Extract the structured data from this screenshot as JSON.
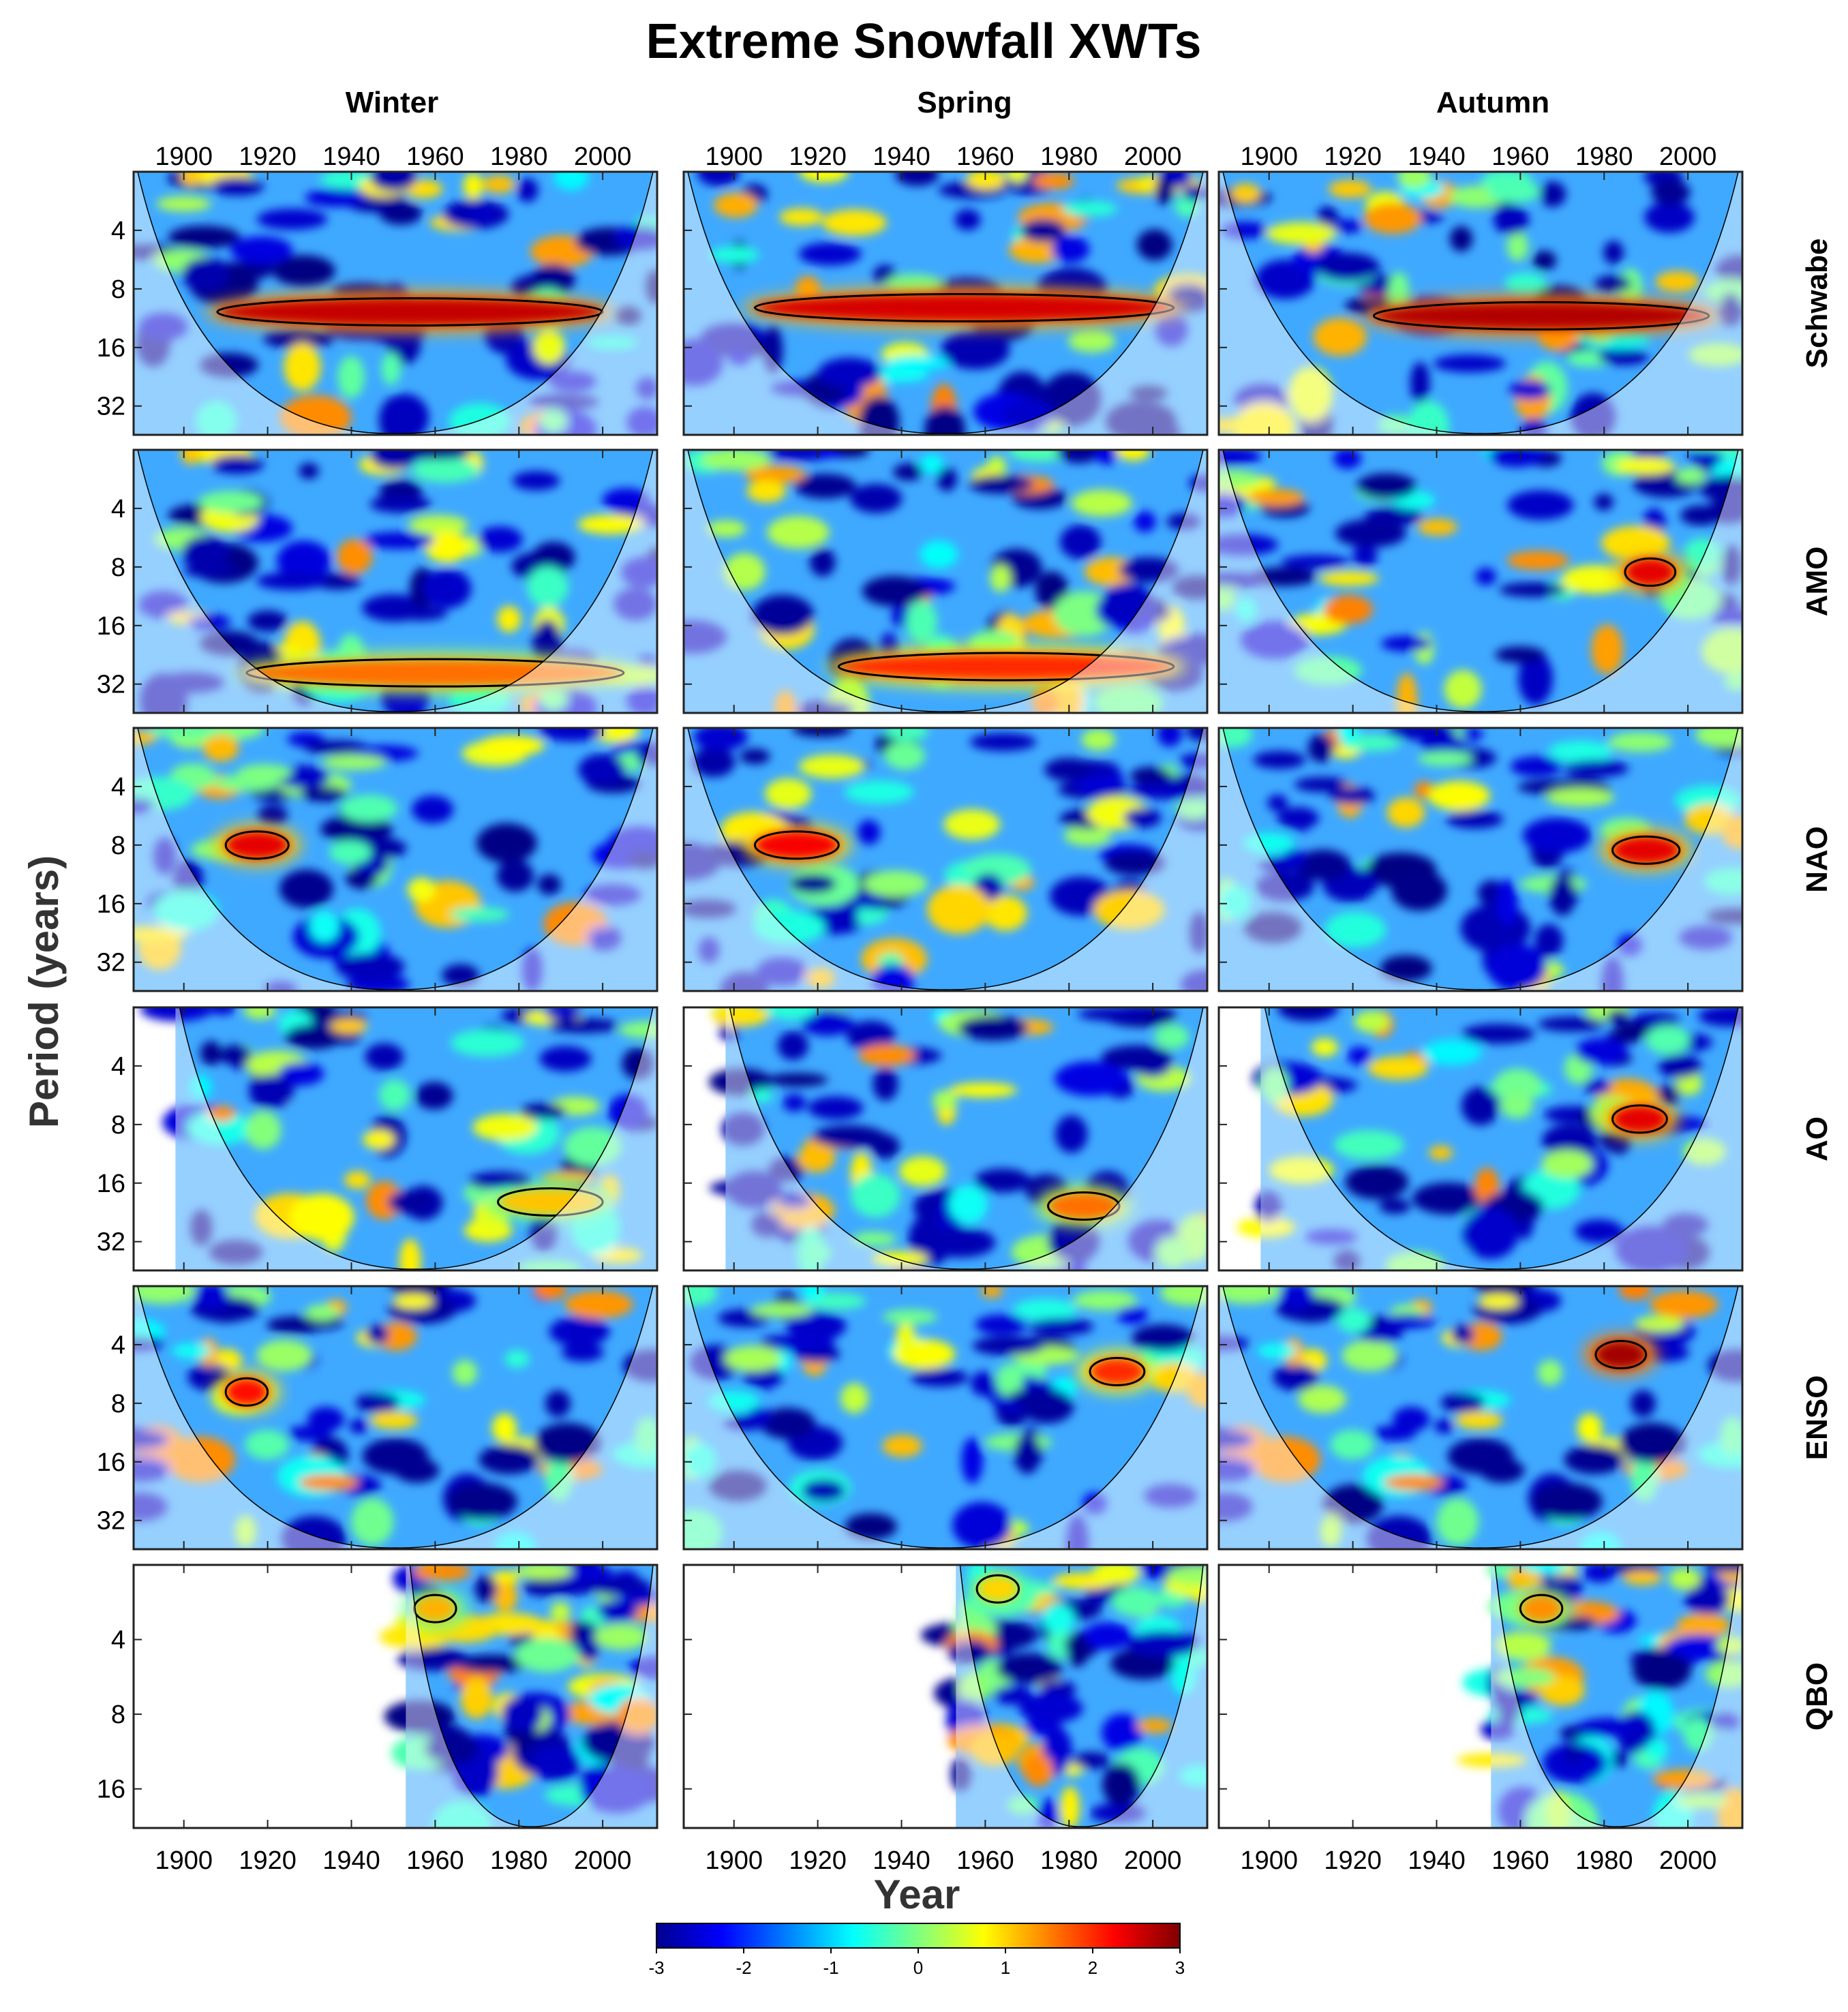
{
  "chart_data": {
    "type": "heatmap",
    "title": "Extreme Snowfall XWTs",
    "xlabel": "Year",
    "ylabel": "Period (years)",
    "columns": [
      "Winter",
      "Spring",
      "Autumn"
    ],
    "rows": [
      {
        "name": "Schwabe",
        "yticks": [
          "4",
          "8",
          "16",
          "32"
        ],
        "period_range": [
          2,
          45
        ],
        "start_year": 1888
      },
      {
        "name": "AMO",
        "yticks": [
          "4",
          "8",
          "16",
          "32"
        ],
        "period_range": [
          2,
          45
        ],
        "start_year": 1888
      },
      {
        "name": "NAO",
        "yticks": [
          "4",
          "8",
          "16",
          "32"
        ],
        "period_range": [
          2,
          45
        ],
        "start_year": 1888
      },
      {
        "name": "AO",
        "yticks": [
          "4",
          "8",
          "16",
          "32"
        ],
        "period_range": [
          2,
          45
        ],
        "start_year": 1898
      },
      {
        "name": "ENSO",
        "yticks": [
          "4",
          "8",
          "16",
          "32"
        ],
        "period_range": [
          2,
          45
        ],
        "start_year": 1888
      },
      {
        "name": "QBO",
        "yticks": [
          "4",
          "8",
          "16"
        ],
        "period_range": [
          2,
          23
        ],
        "start_year": 1953
      }
    ],
    "xticks": [
      "1900",
      "1920",
      "1940",
      "1960",
      "1980",
      "2000"
    ],
    "xlim": [
      1888,
      2013
    ],
    "colorbar": {
      "ticks": [
        "-3",
        "-2",
        "-1",
        "0",
        "1",
        "2",
        "3"
      ],
      "range": [
        -3,
        3
      ],
      "colormap": "jet"
    },
    "bands": {
      "Schwabe": [
        {
          "season": "Winter",
          "period": 10.5,
          "year_start": 1908,
          "year_end": 2000,
          "value": 2.6
        },
        {
          "season": "Spring",
          "period": 10,
          "year_start": 1905,
          "year_end": 2005,
          "value": 2.5
        },
        {
          "season": "Autumn",
          "period": 11,
          "year_start": 1925,
          "year_end": 2005,
          "value": 2.7
        }
      ],
      "AMO": [
        {
          "season": "Winter",
          "period": 28,
          "year_start": 1915,
          "year_end": 2005,
          "value": 1.6
        },
        {
          "season": "Spring",
          "period": 26,
          "year_start": 1925,
          "year_end": 2005,
          "value": 2.0
        },
        {
          "season": "Autumn",
          "period": 8.5,
          "year_start": 1985,
          "year_end": 1997,
          "value": 2.4
        }
      ],
      "NAO": [
        {
          "season": "Winter",
          "period": 8,
          "year_start": 1910,
          "year_end": 1925,
          "value": 2.4
        },
        {
          "season": "Spring",
          "period": 8,
          "year_start": 1905,
          "year_end": 1925,
          "value": 2.3
        },
        {
          "season": "Autumn",
          "period": 8.5,
          "year_start": 1982,
          "year_end": 1998,
          "value": 2.4
        }
      ],
      "AO": [
        {
          "season": "Winter",
          "period": 20,
          "year_start": 1975,
          "year_end": 2000,
          "value": 1.1
        },
        {
          "season": "Spring",
          "period": 21,
          "year_start": 1975,
          "year_end": 1992,
          "value": 1.6
        },
        {
          "season": "Autumn",
          "period": 7.5,
          "year_start": 1982,
          "year_end": 1995,
          "value": 2.4
        }
      ],
      "ENSO": [
        {
          "season": "Winter",
          "period": 7,
          "year_start": 1910,
          "year_end": 1920,
          "value": 2.2
        },
        {
          "season": "Spring",
          "period": 5.5,
          "year_start": 1985,
          "year_end": 1998,
          "value": 2.0
        },
        {
          "season": "Autumn",
          "period": 4.5,
          "year_start": 1978,
          "year_end": 1990,
          "value": 2.8
        }
      ],
      "QBO": [
        {
          "season": "Winter",
          "period": 3,
          "year_start": 1955,
          "year_end": 1965,
          "value": 1.2
        },
        {
          "season": "Spring",
          "period": 2.5,
          "year_start": 1958,
          "year_end": 1968,
          "value": 1.0
        },
        {
          "season": "Autumn",
          "period": 3,
          "year_start": 1960,
          "year_end": 1970,
          "value": 1.4
        }
      ]
    }
  }
}
